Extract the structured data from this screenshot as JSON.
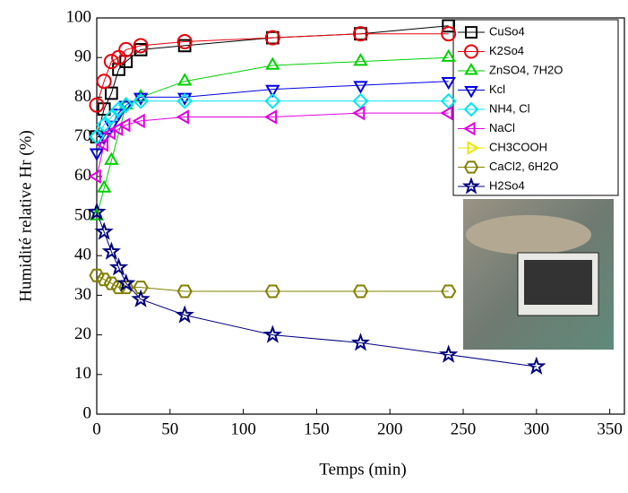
{
  "chart_data": {
    "type": "line",
    "xlabel": "Temps (min)",
    "ylabel": "Humidité relative Hr (%)",
    "xlim": [
      0,
      360
    ],
    "ylim": [
      0,
      100
    ],
    "xticks": [
      0,
      50,
      100,
      150,
      200,
      250,
      300,
      350
    ],
    "yticks": [
      0,
      10,
      20,
      30,
      40,
      50,
      60,
      70,
      80,
      90,
      100
    ],
    "series": [
      {
        "name": "CuSo4",
        "color": "#000000",
        "marker": "square",
        "x": [
          0,
          5,
          10,
          15,
          20,
          30,
          60,
          120,
          180,
          240
        ],
        "values": [
          70,
          77,
          81,
          87,
          89,
          92,
          93,
          95,
          96,
          98
        ]
      },
      {
        "name": "K2So4",
        "color": "#e8000b",
        "marker": "circle",
        "x": [
          0,
          5,
          10,
          15,
          20,
          30,
          60,
          120,
          180,
          240
        ],
        "values": [
          78,
          84,
          89,
          90,
          92,
          93,
          94,
          95,
          96,
          96
        ]
      },
      {
        "name": "ZnSO4, 7H2O",
        "color": "#00d000",
        "marker": "triangle-up",
        "x": [
          0,
          5,
          10,
          20,
          30,
          60,
          120,
          180,
          240
        ],
        "values": [
          50,
          57,
          64,
          78,
          80,
          84,
          88,
          89,
          90
        ]
      },
      {
        "name": "Kcl",
        "color": "#0000e0",
        "marker": "triangle-down",
        "x": [
          0,
          5,
          10,
          15,
          20,
          30,
          60,
          120,
          180,
          240
        ],
        "values": [
          66,
          70,
          73,
          76,
          78,
          80,
          80,
          82,
          83,
          84
        ]
      },
      {
        "name": "NH4, Cl",
        "color": "#00e5ee",
        "marker": "diamond",
        "x": [
          0,
          5,
          10,
          15,
          20,
          30,
          60,
          120,
          180,
          240
        ],
        "values": [
          70,
          73,
          75,
          77,
          78,
          79,
          79,
          79,
          79,
          79
        ]
      },
      {
        "name": "NaCl",
        "color": "#e000e0",
        "marker": "triangle-left",
        "x": [
          0,
          5,
          10,
          15,
          20,
          30,
          60,
          120,
          180,
          240
        ],
        "values": [
          60,
          68,
          71,
          72,
          73,
          74,
          75,
          75,
          76,
          76
        ]
      },
      {
        "name": "CH3COOH",
        "color": "#e8e800",
        "marker": "triangle-right",
        "x": [
          0
        ],
        "values": [
          null
        ]
      },
      {
        "name": "CaCl2, 6H2O",
        "color": "#808000",
        "marker": "hexagon",
        "x": [
          0,
          5,
          10,
          15,
          20,
          30,
          60,
          120,
          180,
          240
        ],
        "values": [
          35,
          34,
          33,
          32,
          32,
          32,
          31,
          31,
          31,
          31
        ]
      },
      {
        "name": "H2So4",
        "color": "#000080",
        "marker": "star",
        "x": [
          0,
          5,
          10,
          15,
          20,
          30,
          60,
          120,
          180,
          240,
          300
        ],
        "values": [
          51,
          46,
          41,
          37,
          33,
          29,
          25,
          20,
          18,
          15,
          12
        ]
      }
    ]
  }
}
